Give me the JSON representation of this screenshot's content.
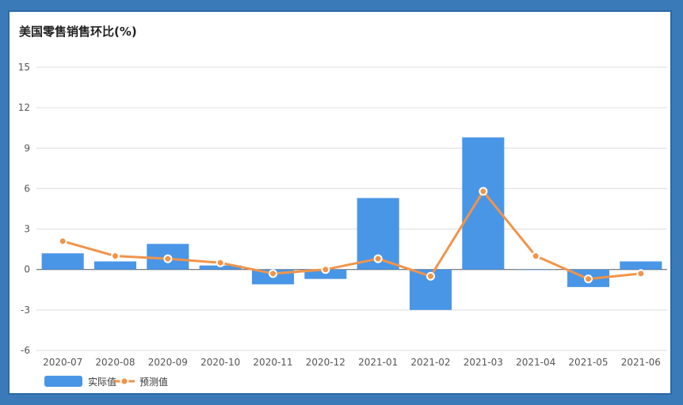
{
  "chart_data": {
    "type": "bar",
    "title": "美国零售销售环比(%)",
    "categories": [
      "2020-07",
      "2020-08",
      "2020-09",
      "2020-10",
      "2020-11",
      "2020-12",
      "2021-01",
      "2021-02",
      "2021-03",
      "2021-04",
      "2021-05",
      "2021-06"
    ],
    "ylim": [
      -6,
      15
    ],
    "yticks": [
      -6,
      -3,
      0,
      3,
      6,
      9,
      12,
      15
    ],
    "grid": true,
    "legend_position": "bottom-left",
    "series": [
      {
        "name": "实际值",
        "type": "bar",
        "color": "#4a96e6",
        "values": [
          1.2,
          0.6,
          1.9,
          0.3,
          -1.1,
          -0.7,
          5.3,
          -3.0,
          9.8,
          0.0,
          -1.3,
          0.6
        ]
      },
      {
        "name": "预测值",
        "type": "line",
        "color": "#f0944a",
        "values": [
          2.1,
          1.0,
          0.8,
          0.5,
          -0.3,
          0.0,
          0.8,
          -0.5,
          5.8,
          1.0,
          -0.7,
          -0.3
        ]
      }
    ]
  }
}
